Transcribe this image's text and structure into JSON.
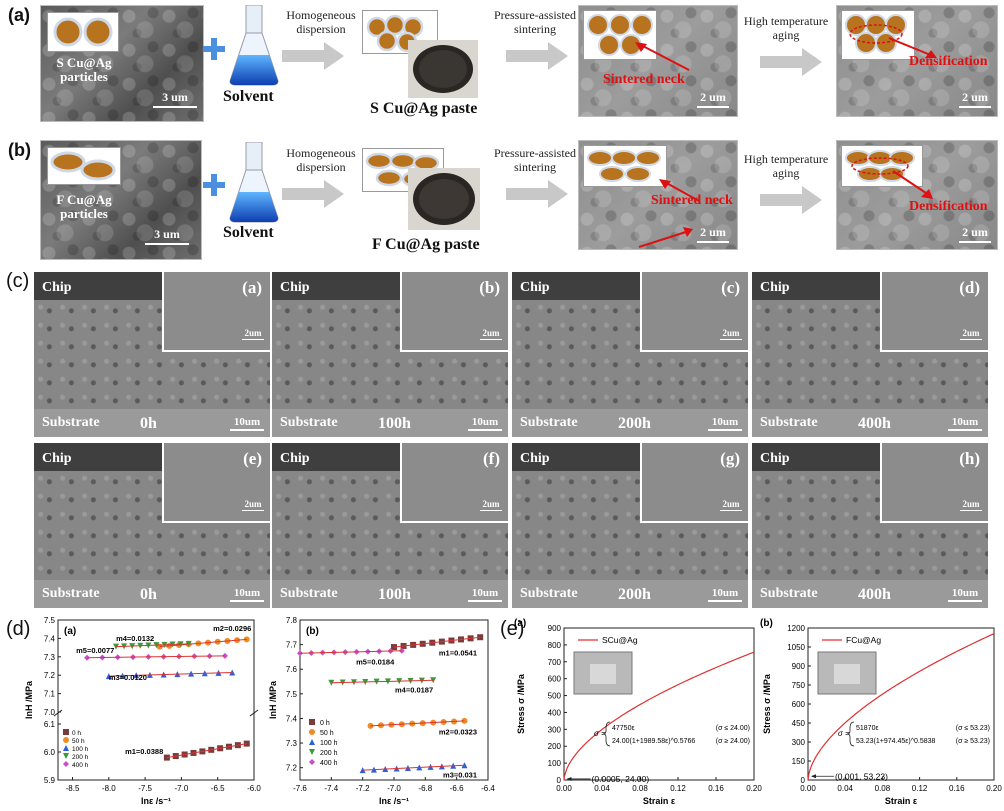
{
  "figure": {
    "row_a": {
      "label": "(a)",
      "particles_caption": "S Cu@Ag\nparticles",
      "particles_scale": "3 um",
      "solvent": "Solvent",
      "step1": "Homogeneous\ndispersion",
      "paste": "S Cu@Ag paste",
      "step2": "Pressure-assisted\nsintering",
      "neck": "Sintered neck",
      "scale_sinter": "2 um",
      "step3": "High temperature\naging",
      "densification": "Densification",
      "scale_dens": "2 um"
    },
    "row_b": {
      "label": "(b)",
      "particles_caption": "F Cu@Ag\nparticles",
      "particles_scale": "3 um",
      "solvent": "Solvent",
      "step1": "Homogeneous\ndispersion",
      "paste": "F Cu@Ag paste",
      "step2": "Pressure-assisted\nsintering",
      "neck": "Sintered neck",
      "scale_sinter": "2 um",
      "step3": "High temperature\naging",
      "densification": "Densification",
      "scale_dens": "2 um"
    },
    "section_c": {
      "label": "(c)",
      "panels": [
        {
          "tag": "(a)",
          "chip": "Chip",
          "substrate": "Substrate",
          "time": "0h",
          "scale": "10um",
          "inset_scale": "2um"
        },
        {
          "tag": "(b)",
          "chip": "Chip",
          "substrate": "Substrate",
          "time": "100h",
          "scale": "10um",
          "inset_scale": "2um"
        },
        {
          "tag": "(c)",
          "chip": "Chip",
          "substrate": "Substrate",
          "time": "200h",
          "scale": "10um",
          "inset_scale": "2um"
        },
        {
          "tag": "(d)",
          "chip": "Chip",
          "substrate": "Substrate",
          "time": "400h",
          "scale": "10um",
          "inset_scale": "2um"
        },
        {
          "tag": "(e)",
          "chip": "Chip",
          "substrate": "Substrate",
          "time": "0h",
          "scale": "10um",
          "inset_scale": "2um"
        },
        {
          "tag": "(f)",
          "chip": "Chip",
          "substrate": "Substrate",
          "time": "100h",
          "scale": "10um",
          "inset_scale": "2um"
        },
        {
          "tag": "(g)",
          "chip": "Chip",
          "substrate": "Substrate",
          "time": "200h",
          "scale": "10um",
          "inset_scale": "2um"
        },
        {
          "tag": "(h)",
          "chip": "Chip",
          "substrate": "Substrate",
          "time": "400h",
          "scale": "10um",
          "inset_scale": "2um"
        }
      ]
    },
    "section_d": {
      "label": "(d)"
    },
    "section_e": {
      "label": "(e)"
    }
  },
  "chart_data": [
    {
      "type": "scatter",
      "title": "(a)",
      "xlabel": "lnε /s⁻¹",
      "ylabel": "lnH /MPa",
      "xlim": [
        -8.7,
        -6.0
      ],
      "xticks": [
        "-8.5",
        "-8.0",
        "-7.5",
        "-7.0",
        "-6.5",
        "-6.0"
      ],
      "yticks_upper": [
        "7.0",
        "7.1",
        "7.2",
        "7.3",
        "7.4",
        "7.5"
      ],
      "yticks_lower": [
        "5.9",
        "6.0",
        "6.1"
      ],
      "legend": [
        "0 h",
        "50 h",
        "100 h",
        "200 h",
        "400 h"
      ],
      "colors": [
        "#7a3b3b",
        "#f08a24",
        "#2c5fd8",
        "#3a9a3a",
        "#c94fc9"
      ],
      "series": [
        {
          "name": "0 h",
          "m_label": "m1=0.0388",
          "x": [
            -7.2,
            -6.1
          ],
          "y": [
            5.98,
            6.03
          ]
        },
        {
          "name": "50 h",
          "m_label": "m2=0.0296",
          "x": [
            -7.3,
            -6.1
          ],
          "y": [
            7.355,
            7.395
          ]
        },
        {
          "name": "100 h",
          "m_label": "m3=0.0120",
          "x": [
            -8.0,
            -6.3
          ],
          "y": [
            7.195,
            7.215
          ]
        },
        {
          "name": "200 h",
          "m_label": "m4=0.0132",
          "x": [
            -7.9,
            -6.9
          ],
          "y": [
            7.355,
            7.37
          ]
        },
        {
          "name": "400 h",
          "m_label": "m5=0.0077",
          "x": [
            -8.3,
            -6.4
          ],
          "y": [
            7.295,
            7.305
          ]
        }
      ]
    },
    {
      "type": "scatter",
      "title": "(b)",
      "xlabel": "lnε /s⁻¹",
      "ylabel": "lnH /MPa",
      "xlim": [
        -7.6,
        -6.4
      ],
      "ylim": [
        7.15,
        7.8
      ],
      "xticks": [
        "-7.6",
        "-7.4",
        "-7.2",
        "-7.0",
        "-6.8",
        "-6.6",
        "-6.4"
      ],
      "yticks": [
        "7.2",
        "7.3",
        "7.4",
        "7.5",
        "7.6",
        "7.7",
        "7.8"
      ],
      "legend": [
        "0 h",
        "50 h",
        "100 h",
        "200 h",
        "400 h"
      ],
      "colors": [
        "#7a3b3b",
        "#f08a24",
        "#2c5fd8",
        "#3a9a3a",
        "#c94fc9"
      ],
      "series": [
        {
          "name": "0 h",
          "m_label": "m1=0.0541",
          "x": [
            -7.0,
            -6.45
          ],
          "y": [
            7.69,
            7.73
          ]
        },
        {
          "name": "50 h",
          "m_label": "m2=0.0323",
          "x": [
            -7.15,
            -6.55
          ],
          "y": [
            7.37,
            7.39
          ]
        },
        {
          "name": "100 h",
          "m_label": "m3=0.031",
          "x": [
            -7.2,
            -6.55
          ],
          "y": [
            7.19,
            7.21
          ]
        },
        {
          "name": "200 h",
          "m_label": "m4=0.0187",
          "x": [
            -7.4,
            -6.75
          ],
          "y": [
            7.545,
            7.555
          ]
        },
        {
          "name": "400 h",
          "m_label": "m5=0.0184",
          "x": [
            -7.6,
            -6.95
          ],
          "y": [
            7.665,
            7.675
          ]
        }
      ]
    },
    {
      "type": "line",
      "title": "(a)",
      "legend": [
        "SCu@Ag"
      ],
      "xlabel": "Strain ε",
      "ylabel": "Stress σ /MPa",
      "xlim": [
        0,
        0.2
      ],
      "ylim": [
        0,
        900
      ],
      "xticks": [
        "0.00",
        "0.04",
        "0.08",
        "0.12",
        "0.16",
        "0.20"
      ],
      "yticks": [
        "0",
        "100",
        "200",
        "300",
        "400",
        "500",
        "600",
        "700",
        "800",
        "900"
      ],
      "E": 47750,
      "sy": 24.0,
      "K": 1989.58,
      "n": 0.5766,
      "eq_lines": [
        "47750ε",
        "24.00(1+1989.58ε)^0.5766"
      ],
      "eq_conds": [
        "(σ ≤ 24.00)",
        "(σ ≥ 24.00)"
      ],
      "annotation": "(0.0005, 24.00)",
      "color": "#e03030"
    },
    {
      "type": "line",
      "title": "(b)",
      "legend": [
        "FCu@Ag"
      ],
      "xlabel": "Strain ε",
      "ylabel": "Stress σ /MPa",
      "xlim": [
        0,
        0.2
      ],
      "ylim": [
        0,
        1200
      ],
      "xticks": [
        "0.00",
        "0.04",
        "0.08",
        "0.12",
        "0.16",
        "0.20"
      ],
      "yticks": [
        "0",
        "150",
        "300",
        "450",
        "600",
        "750",
        "900",
        "1050",
        "1200"
      ],
      "E": 51870,
      "sy": 53.23,
      "K": 974.45,
      "n": 0.5838,
      "eq_lines": [
        "51870ε",
        "53.23(1+974.45ε)^0.5838"
      ],
      "eq_conds": [
        "(σ ≤ 53.23)",
        "(σ ≥ 53.23)"
      ],
      "annotation": "(0.001, 53.23)",
      "color": "#e03030"
    }
  ]
}
